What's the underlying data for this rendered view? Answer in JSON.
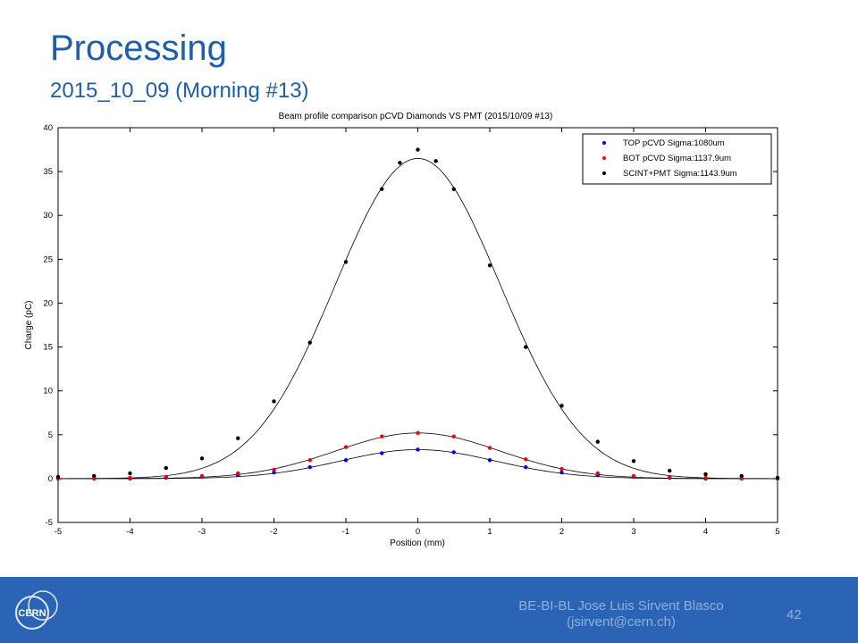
{
  "slide": {
    "title": "Processing",
    "subtitle": "2015_10_09 (Morning #13)",
    "footer_line1": "BE-BI-BL Jose Luis Sirvent Blasco",
    "footer_line2": "(jsirvent@cern.ch)",
    "page_number": "42",
    "logo_text": "CERN",
    "footer_color": "#2b63b5",
    "title_color": "#1f5ea8"
  },
  "chart_data": {
    "type": "scatter",
    "title": "Beam profile comparison pCVD Diamonds VS PMT (2015/10/09 #13)",
    "xlabel": "Position (mm)",
    "ylabel": "Charge (pC)",
    "xlim": [
      -5,
      5
    ],
    "ylim": [
      -5,
      40
    ],
    "xticks": [
      "-5",
      "-4",
      "-3",
      "-2",
      "-1",
      "0",
      "1",
      "2",
      "3",
      "4",
      "5"
    ],
    "yticks": [
      "-5",
      "0",
      "5",
      "10",
      "15",
      "20",
      "25",
      "30",
      "35",
      "40"
    ],
    "grid": false,
    "legend_position": "top-right",
    "series": [
      {
        "name": "TOP pCVD Sigma:1080um",
        "color": "#0000ff",
        "marker": "dot",
        "x": [
          -5.0,
          -4.5,
          -4.0,
          -3.5,
          -3.0,
          -2.5,
          -2.0,
          -1.5,
          -1.0,
          -0.5,
          0.0,
          0.5,
          1.0,
          1.5,
          2.0,
          2.5,
          3.0,
          3.5,
          4.0,
          4.5,
          5.0
        ],
        "y": [
          0.0,
          0.0,
          0.0,
          0.1,
          0.2,
          0.4,
          0.7,
          1.3,
          2.1,
          2.9,
          3.3,
          3.0,
          2.1,
          1.3,
          0.7,
          0.4,
          0.2,
          0.1,
          0.0,
          0.0,
          0.0
        ],
        "fit_amplitude": 3.3,
        "fit_sigma_mm": 1.08
      },
      {
        "name": "BOT pCVD Sigma:1137.9um",
        "color": "#ff0000",
        "marker": "dot",
        "x": [
          -5.0,
          -4.5,
          -4.0,
          -3.5,
          -3.0,
          -2.5,
          -2.0,
          -1.5,
          -1.0,
          -0.5,
          0.0,
          0.5,
          1.0,
          1.5,
          2.0,
          2.5,
          3.0,
          3.5,
          4.0,
          4.5,
          5.0
        ],
        "y": [
          0.0,
          0.0,
          0.1,
          0.2,
          0.3,
          0.6,
          1.0,
          2.1,
          3.6,
          4.8,
          5.2,
          4.8,
          3.5,
          2.2,
          1.1,
          0.6,
          0.3,
          0.2,
          0.1,
          0.0,
          0.0
        ],
        "fit_amplitude": 5.2,
        "fit_sigma_mm": 1.1379
      },
      {
        "name": "SCINT+PMT Sigma:1143.9um",
        "color": "#000000",
        "marker": "dot",
        "x": [
          -5.0,
          -4.5,
          -4.0,
          -3.5,
          -3.0,
          -2.5,
          -2.0,
          -1.5,
          -1.0,
          -0.5,
          -0.25,
          0.0,
          0.25,
          0.5,
          1.0,
          1.5,
          2.0,
          2.5,
          3.0,
          3.5,
          4.0,
          4.5,
          5.0
        ],
        "y": [
          0.2,
          0.3,
          0.6,
          1.2,
          2.3,
          4.6,
          8.8,
          15.5,
          24.7,
          33.0,
          36.0,
          37.5,
          36.2,
          33.0,
          24.3,
          15.0,
          8.3,
          4.2,
          2.0,
          0.9,
          0.5,
          0.3,
          0.1
        ],
        "fit_amplitude": 36.5,
        "fit_sigma_mm": 1.1439
      }
    ]
  }
}
